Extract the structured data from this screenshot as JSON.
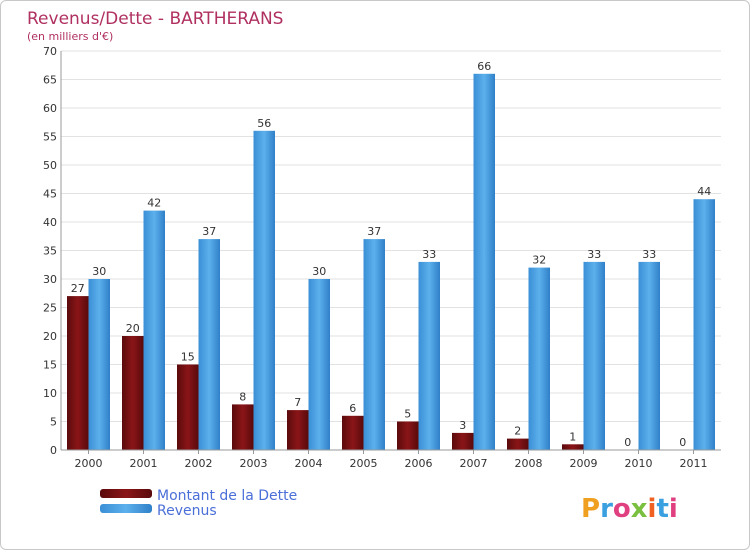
{
  "chart_data": {
    "type": "bar",
    "title": "Revenus/Dette - BARTHERANS",
    "subtitle": "(en milliers d'€)",
    "categories": [
      "2000",
      "2001",
      "2002",
      "2003",
      "2004",
      "2005",
      "2006",
      "2007",
      "2008",
      "2009",
      "2010",
      "2011"
    ],
    "series": [
      {
        "name": "Montant de la Dette",
        "color": "#7a0f12",
        "values": [
          27,
          20,
          15,
          8,
          7,
          6,
          5,
          3,
          2,
          1,
          0,
          0
        ]
      },
      {
        "name": "Revenus",
        "color": "#4a9fe0",
        "values": [
          30,
          42,
          37,
          56,
          30,
          37,
          33,
          66,
          32,
          33,
          33,
          44
        ]
      }
    ],
    "ylim": [
      0,
      70
    ],
    "yticks": [
      0,
      5,
      10,
      15,
      20,
      25,
      30,
      35,
      40,
      45,
      50,
      55,
      60,
      65,
      70
    ],
    "grid": true,
    "legend_position": "bottom-left"
  },
  "branding": {
    "logo_text": "Proxiti",
    "logo_colors": [
      "#f0a020",
      "#3aa0e0",
      "#e04080",
      "#7ac040",
      "#f06020",
      "#3aa0e0",
      "#e04080"
    ]
  }
}
